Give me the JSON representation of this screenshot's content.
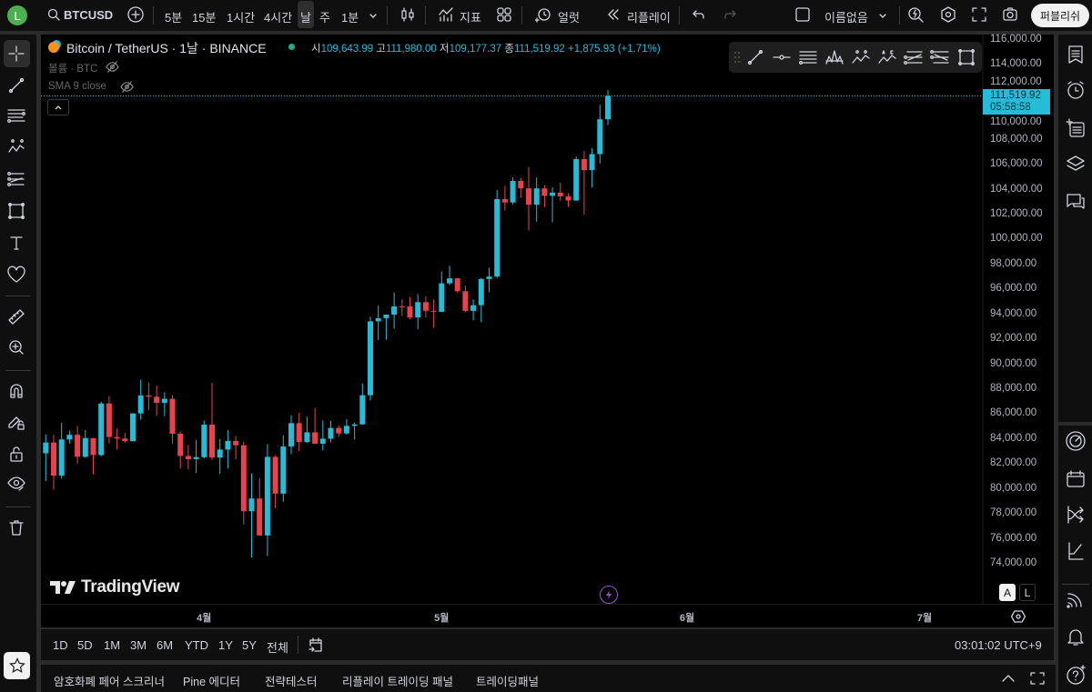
{
  "topbar": {
    "avatar_letter": "L",
    "symbol": "BTCUSD",
    "intervals": [
      "5분",
      "15분",
      "1시간",
      "4시간",
      "날",
      "주",
      "1분"
    ],
    "active_interval": "날",
    "indicators_label": "지표",
    "alert_label": "얼럿",
    "replay_label": "리플레이",
    "layout_name": "이름없음",
    "publish_label": "퍼블리쉬"
  },
  "legend": {
    "title": "Bitcoin / TetherUS · 1날 · BINANCE",
    "open_label": "시",
    "open": "109,643.99",
    "high_label": "고",
    "high": "111,980.00",
    "low_label": "저",
    "low": "109,177.37",
    "close_label": "종",
    "close": "111,519.92",
    "change": "+1,875.93 (+1.71%)",
    "volume": "볼륨 · BTC",
    "sma": "SMA 9 close"
  },
  "price_label": {
    "price": "111,519.92",
    "countdown": "05:58:58"
  },
  "colors": {
    "up": "#26bcd8",
    "down": "#e8424f",
    "background": "#000000",
    "accent_purple": "#9c4fd0"
  },
  "watermark": "TradingView",
  "time_axis": {
    "labels": [
      "4월",
      "5월",
      "6월",
      "7월"
    ]
  },
  "scale_buttons": [
    "A",
    "L"
  ],
  "range_bar": {
    "ranges": [
      "1D",
      "5D",
      "1M",
      "3M",
      "6M",
      "YTD",
      "1Y",
      "5Y",
      "전체"
    ],
    "clock": "03:01:02 UTC+9"
  },
  "bottom_tabs": [
    "암호화폐 페어 스크리너",
    "Pine 에디터",
    "전략테스터",
    "리플레이 트레이딩 패널",
    "트레이딩패널"
  ],
  "chart_data": {
    "type": "candlestick",
    "symbol": "BTCUSDT",
    "interval": "1D",
    "ylim": [
      74000,
      116000
    ],
    "y_ticks": [
      "116,000.00",
      "114,000.00",
      "112,000.00",
      "110,000.00",
      "108,000.00",
      "106,000.00",
      "104,000.00",
      "102,000.00",
      "100,000.00",
      "98,000.00",
      "96,000.00",
      "94,000.00",
      "92,000.00",
      "90,000.00",
      "88,000.00",
      "86,000.00",
      "84,000.00",
      "82,000.00",
      "80,000.00",
      "78,000.00",
      "76,000.00",
      "74,000.00"
    ],
    "x_range": [
      "2025-03-12",
      "2025-07-10"
    ],
    "last_price": 111519.92,
    "candles": [
      [
        "2025-03-12",
        82862,
        84358,
        80635,
        83722
      ],
      [
        "2025-03-13",
        83722,
        84336,
        79940,
        81066
      ],
      [
        "2025-03-14",
        81066,
        85309,
        80820,
        83969
      ],
      [
        "2025-03-15",
        83969,
        84672,
        83639,
        84343
      ],
      [
        "2025-03-16",
        84343,
        85050,
        82017,
        82579
      ],
      [
        "2025-03-17",
        82579,
        84726,
        82492,
        84075
      ],
      [
        "2025-03-18",
        84075,
        84075,
        81180,
        82719
      ],
      [
        "2025-03-19",
        82719,
        87000,
        82605,
        86855
      ],
      [
        "2025-03-20",
        86855,
        87453,
        83655,
        84167
      ],
      [
        "2025-03-21",
        84167,
        84850,
        83175,
        84043
      ],
      [
        "2025-03-22",
        84043,
        84513,
        83674,
        83832
      ],
      [
        "2025-03-23",
        83832,
        86094,
        83795,
        86054
      ],
      [
        "2025-03-24",
        86054,
        88765,
        85541,
        87498
      ],
      [
        "2025-03-25",
        87498,
        88543,
        86311,
        87392
      ],
      [
        "2025-03-26",
        87392,
        88292,
        85861,
        86909
      ],
      [
        "2025-03-27",
        86909,
        87756,
        85842,
        87232
      ],
      [
        "2025-03-28",
        87232,
        87515,
        83646,
        84424
      ],
      [
        "2025-03-29",
        84424,
        84624,
        81644,
        82648
      ],
      [
        "2025-03-30",
        82648,
        83534,
        81565,
        82390
      ],
      [
        "2025-03-31",
        82390,
        83943,
        81279,
        82550
      ],
      [
        "2025-04-01",
        82550,
        85487,
        82429,
        85159
      ],
      [
        "2025-04-02",
        85159,
        88500,
        82320,
        82517
      ],
      [
        "2025-04-03",
        82517,
        83998,
        81211,
        83159
      ],
      [
        "2025-04-04",
        83159,
        84720,
        81659,
        83843
      ],
      [
        "2025-04-05",
        83843,
        84249,
        82378,
        83505
      ],
      [
        "2025-04-06",
        83505,
        83795,
        77153,
        78214
      ],
      [
        "2025-04-07",
        78214,
        81243,
        74508,
        79235
      ],
      [
        "2025-04-08",
        79235,
        80867,
        76239,
        76271
      ],
      [
        "2025-04-09",
        76271,
        83588,
        74620,
        82573
      ],
      [
        "2025-04-10",
        82573,
        82700,
        78456,
        79626
      ],
      [
        "2025-04-11",
        79626,
        84300,
        78969,
        83405
      ],
      [
        "2025-04-12",
        83405,
        85905,
        82792,
        85276
      ],
      [
        "2025-04-13",
        85276,
        86100,
        83034,
        83760
      ],
      [
        "2025-04-14",
        83760,
        85799,
        83678,
        84542
      ],
      [
        "2025-04-15",
        84542,
        86496,
        83600,
        83629
      ],
      [
        "2025-04-16",
        83629,
        85500,
        83111,
        84033
      ],
      [
        "2025-04-17",
        84033,
        85470,
        83736,
        84895
      ],
      [
        "2025-04-18",
        84895,
        85094,
        84158,
        84450
      ],
      [
        "2025-04-19",
        84450,
        85597,
        84353,
        85059
      ],
      [
        "2025-04-20",
        85059,
        85320,
        83950,
        85179
      ],
      [
        "2025-04-21",
        85179,
        88460,
        85143,
        87516
      ],
      [
        "2025-04-22",
        87516,
        93817,
        87084,
        93442
      ],
      [
        "2025-04-23",
        93442,
        94696,
        91935,
        93691
      ],
      [
        "2025-04-24",
        93691,
        93893,
        91962,
        93980
      ],
      [
        "2025-04-25",
        93980,
        95758,
        92855,
        94638
      ],
      [
        "2025-04-26",
        94638,
        95199,
        93870,
        94631
      ],
      [
        "2025-04-27",
        94631,
        95369,
        93602,
        93754
      ],
      [
        "2025-04-28",
        93754,
        95630,
        92800,
        94978
      ],
      [
        "2025-04-29",
        94978,
        95461,
        93742,
        94284
      ],
      [
        "2025-04-30",
        94284,
        95200,
        92910,
        94207
      ],
      [
        "2025-05-01",
        94207,
        97437,
        94153,
        96489
      ],
      [
        "2025-05-02",
        96489,
        97895,
        96350,
        96887
      ],
      [
        "2025-05-03",
        96887,
        96935,
        95753,
        95856
      ],
      [
        "2025-05-04",
        95856,
        96304,
        94151,
        94277
      ],
      [
        "2025-05-05",
        94277,
        95199,
        93514,
        94733
      ],
      [
        "2025-05-06",
        94733,
        96920,
        93377,
        96834
      ],
      [
        "2025-05-07",
        96834,
        97732,
        95784,
        97032
      ],
      [
        "2025-05-08",
        97032,
        103971,
        96913,
        103241
      ],
      [
        "2025-05-09",
        103241,
        104304,
        102333,
        102971
      ],
      [
        "2025-05-10",
        102971,
        104984,
        102818,
        104697
      ],
      [
        "2025-05-11",
        104697,
        104937,
        103346,
        104107
      ],
      [
        "2025-05-12",
        104107,
        105819,
        100718,
        102791
      ],
      [
        "2025-05-13",
        102791,
        104976,
        101429,
        104103
      ],
      [
        "2025-05-14",
        104103,
        104356,
        102602,
        103507
      ],
      [
        "2025-05-15",
        103507,
        104192,
        101383,
        103764
      ],
      [
        "2025-05-16",
        103764,
        104550,
        103100,
        103463
      ],
      [
        "2025-05-17",
        103463,
        103709,
        102612,
        103127
      ],
      [
        "2025-05-18",
        103127,
        106660,
        103105,
        106454
      ],
      [
        "2025-05-19",
        106454,
        107109,
        102000,
        105573
      ],
      [
        "2025-05-20",
        105573,
        107320,
        104184,
        106850
      ],
      [
        "2025-05-21",
        106850,
        110797,
        106100,
        109643
      ],
      [
        "2025-05-22",
        109643,
        111980,
        109177,
        111519.92
      ]
    ]
  }
}
